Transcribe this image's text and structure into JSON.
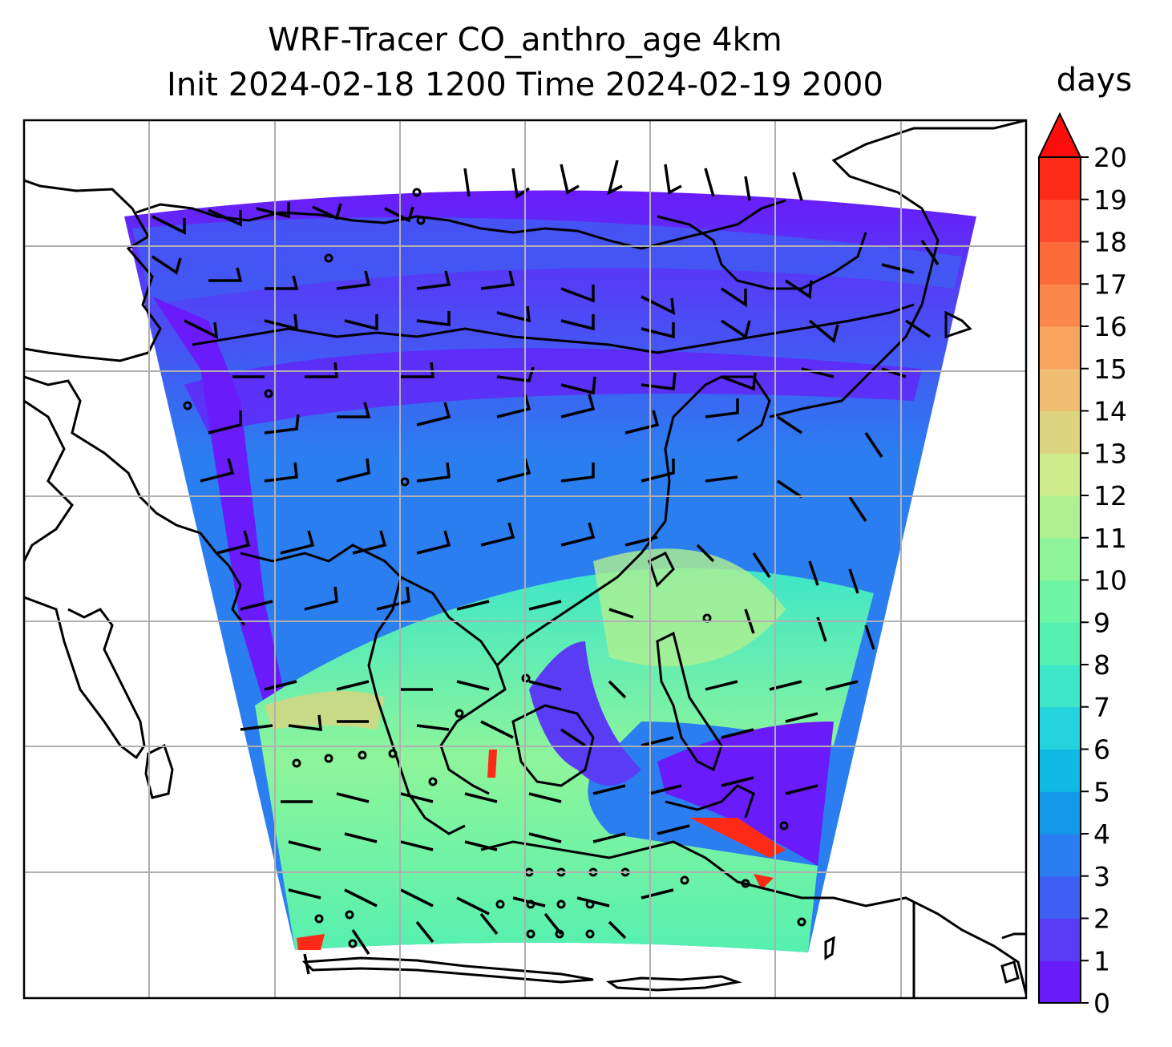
{
  "title_line1": "WRF-Tracer CO_anthro_age 4km",
  "title_line2": "Init 2024-02-18 1200 Time 2024-02-19 2000",
  "colorbar": {
    "unit": "days",
    "min": 0,
    "max": 20,
    "step": 1,
    "extend": "max",
    "ticks": [
      "0",
      "1",
      "2",
      "3",
      "4",
      "5",
      "6",
      "7",
      "8",
      "9",
      "10",
      "11",
      "12",
      "13",
      "14",
      "15",
      "16",
      "17",
      "18",
      "19",
      "20"
    ],
    "colors": [
      "#6a1bf9",
      "#5a3cf5",
      "#3f5ef2",
      "#2b7ef0",
      "#1299e8",
      "#0eb9e2",
      "#22d3dd",
      "#3ee6c8",
      "#55f0b0",
      "#6ef5a4",
      "#8ef59a",
      "#b0f090",
      "#cdeb8a",
      "#dcd47e",
      "#efbe70",
      "#f8a35e",
      "#fb874a",
      "#fc6a3a",
      "#fc4a2a",
      "#fd2a18"
    ],
    "extend_color": "#fe0d0d"
  },
  "map": {
    "gridlines": true,
    "field": "CO_anthro_age",
    "overlay": "wind barbs"
  }
}
